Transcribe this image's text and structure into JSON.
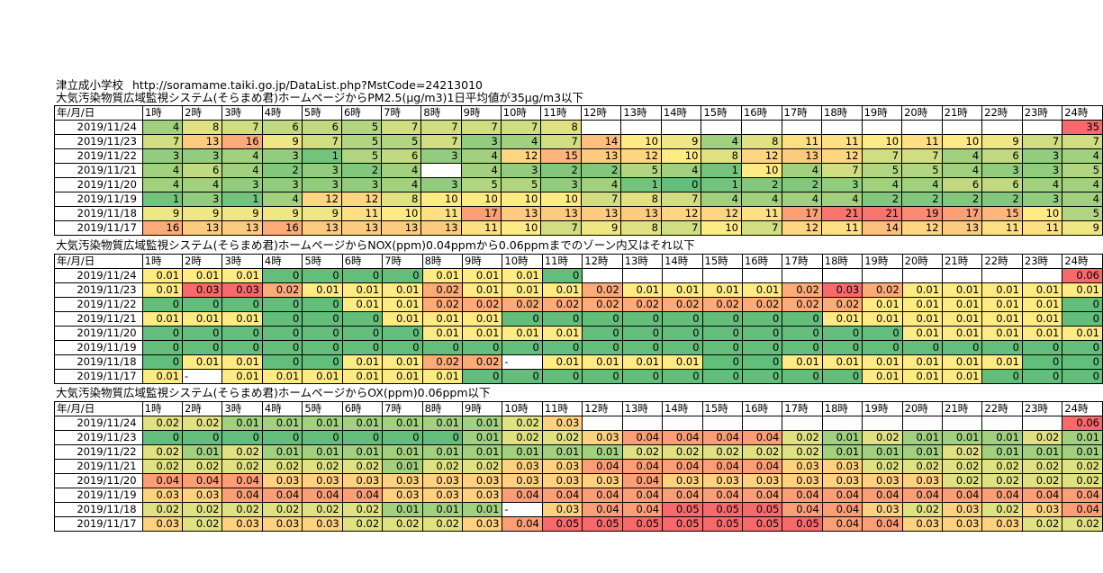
{
  "site": {
    "name": "津立成小学校",
    "url": "http://soramame.taiki.go.jp/DataList.php?MstCode=24213010"
  },
  "header_row": {
    "corner": "年/月/日",
    "hours": [
      "1時",
      "2時",
      "3時",
      "4時",
      "5時",
      "6時",
      "7時",
      "8時",
      "9時",
      "10時",
      "11時",
      "12時",
      "13時",
      "14時",
      "15時",
      "16時",
      "17時",
      "18時",
      "19時",
      "20時",
      "21時",
      "22時",
      "23時",
      "24時"
    ]
  },
  "sections": [
    {
      "id": "pm25",
      "caption": "大気汚染物質広域監視システム(そらまめ君)ホームページからPM2.5(μg/m3)1日平均値が35μg/m3以下",
      "scale": {
        "lo": 0,
        "mid": 10,
        "hi": 22
      },
      "rows": [
        {
          "date": "2019/11/24",
          "values": [
            "4",
            "8",
            "7",
            "6",
            "6",
            "5",
            "7",
            "7",
            "7",
            "7",
            "8",
            "",
            "",
            "",
            "",
            "",
            "",
            "",
            "",
            "",
            "",
            "",
            "",
            "35"
          ]
        },
        {
          "date": "2019/11/23",
          "values": [
            "7",
            "13",
            "16",
            "9",
            "7",
            "5",
            "5",
            "7",
            "3",
            "4",
            "7",
            "14",
            "10",
            "9",
            "4",
            "8",
            "11",
            "11",
            "10",
            "11",
            "10",
            "9",
            "7",
            "7"
          ]
        },
        {
          "date": "2019/11/22",
          "values": [
            "3",
            "3",
            "4",
            "3",
            "1",
            "5",
            "6",
            "3",
            "4",
            "12",
            "15",
            "13",
            "12",
            "10",
            "8",
            "12",
            "13",
            "12",
            "7",
            "7",
            "4",
            "6",
            "3",
            "4"
          ]
        },
        {
          "date": "2019/11/21",
          "values": [
            "4",
            "6",
            "4",
            "2",
            "3",
            "2",
            "4",
            "",
            "4",
            "3",
            "2",
            "2",
            "5",
            "4",
            "1",
            "10",
            "4",
            "7",
            "5",
            "5",
            "4",
            "3",
            "3",
            "5"
          ]
        },
        {
          "date": "2019/11/20",
          "values": [
            "4",
            "4",
            "3",
            "3",
            "3",
            "3",
            "4",
            "3",
            "5",
            "5",
            "3",
            "4",
            "1",
            "0",
            "1",
            "2",
            "2",
            "3",
            "4",
            "4",
            "6",
            "6",
            "4",
            "4"
          ]
        },
        {
          "date": "2019/11/19",
          "values": [
            "1",
            "3",
            "1",
            "4",
            "12",
            "12",
            "8",
            "10",
            "10",
            "10",
            "10",
            "7",
            "8",
            "7",
            "4",
            "4",
            "4",
            "4",
            "2",
            "2",
            "2",
            "2",
            "3",
            "4"
          ]
        },
        {
          "date": "2019/11/18",
          "values": [
            "9",
            "9",
            "9",
            "9",
            "9",
            "11",
            "10",
            "11",
            "17",
            "13",
            "13",
            "13",
            "13",
            "12",
            "12",
            "11",
            "17",
            "21",
            "21",
            "19",
            "17",
            "15",
            "10",
            "5"
          ]
        },
        {
          "date": "2019/11/17",
          "values": [
            "16",
            "13",
            "13",
            "16",
            "13",
            "13",
            "13",
            "13",
            "11",
            "10",
            "7",
            "9",
            "8",
            "7",
            "10",
            "7",
            "12",
            "11",
            "14",
            "12",
            "13",
            "11",
            "11",
            "9"
          ]
        }
      ]
    },
    {
      "id": "nox",
      "caption": "大気汚染物質広域監視システム(そらまめ君)ホームページからNOX(ppm)0.04ppmから0.06ppmまでのゾーン内又はそれ以下",
      "scale": {
        "lo": 0,
        "mid": 0.01,
        "hi": 0.03
      },
      "rows": [
        {
          "date": "2019/11/24",
          "values": [
            "0.01",
            "0.01",
            "0.01",
            "0",
            "0",
            "0",
            "0",
            "0.01",
            "0.01",
            "0.01",
            "0",
            "",
            "",
            "",
            "",
            "",
            "",
            "",
            "",
            "",
            "",
            "",
            "",
            "0.06"
          ]
        },
        {
          "date": "2019/11/23",
          "values": [
            "0.01",
            "0.03",
            "0.03",
            "0.02",
            "0.01",
            "0.01",
            "0.01",
            "0.02",
            "0.01",
            "0.01",
            "0.01",
            "0.02",
            "0.01",
            "0.01",
            "0.01",
            "0.01",
            "0.02",
            "0.03",
            "0.02",
            "0.01",
            "0.01",
            "0.01",
            "0.01",
            "0.01"
          ]
        },
        {
          "date": "2019/11/22",
          "values": [
            "0",
            "0",
            "0",
            "0",
            "0",
            "0.01",
            "0.01",
            "0.02",
            "0.02",
            "0.02",
            "0.02",
            "0.02",
            "0.02",
            "0.02",
            "0.02",
            "0.02",
            "0.02",
            "0.02",
            "0.01",
            "0.01",
            "0.01",
            "0.01",
            "0.01",
            "0"
          ]
        },
        {
          "date": "2019/11/21",
          "values": [
            "0.01",
            "0.01",
            "0.01",
            "0",
            "0",
            "0",
            "0.01",
            "0.01",
            "0.01",
            "0",
            "0",
            "0",
            "0",
            "0",
            "0",
            "0",
            "0",
            "0.01",
            "0.01",
            "0.01",
            "0.01",
            "0.01",
            "0.01",
            "0"
          ]
        },
        {
          "date": "2019/11/20",
          "values": [
            "0",
            "0",
            "0",
            "0",
            "0",
            "0",
            "0",
            "0.01",
            "0.01",
            "0.01",
            "0.01",
            "0",
            "0",
            "0",
            "0",
            "0",
            "0",
            "0",
            "0",
            "0.01",
            "0.01",
            "0.01",
            "0.01",
            "0.01"
          ]
        },
        {
          "date": "2019/11/19",
          "values": [
            "0",
            "0",
            "0",
            "0",
            "0",
            "0",
            "0",
            "0",
            "0",
            "0",
            "0",
            "0",
            "0",
            "0",
            "0",
            "0",
            "0",
            "0",
            "0",
            "0",
            "0",
            "0",
            "0",
            "0"
          ]
        },
        {
          "date": "2019/11/18",
          "values": [
            "0",
            "0.01",
            "0.01",
            "0",
            "0",
            "0.01",
            "0.01",
            "0.02",
            "0.02",
            "-",
            "0.01",
            "0.01",
            "0.01",
            "0.01",
            "0",
            "0",
            "0.01",
            "0.01",
            "0.01",
            "0.01",
            "0.01",
            "0.01",
            "0",
            "0"
          ]
        },
        {
          "date": "2019/11/17",
          "values": [
            "0.01",
            "-",
            "0.01",
            "0.01",
            "0.01",
            "0.01",
            "0.01",
            "0.01",
            "0",
            "0",
            "0",
            "0",
            "0",
            "0",
            "0",
            "0",
            "0",
            "0",
            "0.01",
            "0.01",
            "0.01",
            "0",
            "0",
            "0"
          ]
        }
      ]
    },
    {
      "id": "ox",
      "caption": "大気汚染物質広域監視システム(そらまめ君)ホームページからOX(ppm)0.06ppm以下",
      "scale": {
        "lo": 0,
        "mid": 0.025,
        "hi": 0.05
      },
      "rows": [
        {
          "date": "2019/11/24",
          "values": [
            "0.02",
            "0.02",
            "0.01",
            "0.01",
            "0.01",
            "0.01",
            "0.01",
            "0.01",
            "0.01",
            "0.02",
            "0.03",
            "",
            "",
            "",
            "",
            "",
            "",
            "",
            "",
            "",
            "",
            "",
            "",
            "0.06"
          ]
        },
        {
          "date": "2019/11/23",
          "values": [
            "0",
            "0",
            "0",
            "0",
            "0",
            "0",
            "0",
            "0",
            "0.01",
            "0.02",
            "0.02",
            "0.03",
            "0.04",
            "0.04",
            "0.04",
            "0.04",
            "0.02",
            "0.01",
            "0.02",
            "0.01",
            "0.01",
            "0.01",
            "0.02",
            "0.01"
          ]
        },
        {
          "date": "2019/11/22",
          "values": [
            "0.02",
            "0.01",
            "0.02",
            "0.01",
            "0.01",
            "0.01",
            "0.01",
            "0.01",
            "0.01",
            "0.01",
            "0.01",
            "0.01",
            "0.02",
            "0.02",
            "0.02",
            "0.02",
            "0.02",
            "0.01",
            "0.01",
            "0.01",
            "0.02",
            "0.01",
            "0.01",
            "0.01"
          ]
        },
        {
          "date": "2019/11/21",
          "values": [
            "0.02",
            "0.02",
            "0.02",
            "0.02",
            "0.02",
            "0.02",
            "0.01",
            "0.02",
            "0.02",
            "0.03",
            "0.03",
            "0.04",
            "0.04",
            "0.04",
            "0.04",
            "0.04",
            "0.03",
            "0.03",
            "0.02",
            "0.02",
            "0.02",
            "0.02",
            "0.02",
            "0.02"
          ]
        },
        {
          "date": "2019/11/20",
          "values": [
            "0.04",
            "0.04",
            "0.04",
            "0.03",
            "0.03",
            "0.03",
            "0.03",
            "0.03",
            "0.03",
            "0.03",
            "0.03",
            "0.03",
            "0.04",
            "0.03",
            "0.03",
            "0.03",
            "0.03",
            "0.03",
            "0.03",
            "0.03",
            "0.02",
            "0.02",
            "0.02",
            "0.02"
          ]
        },
        {
          "date": "2019/11/19",
          "values": [
            "0.03",
            "0.03",
            "0.04",
            "0.04",
            "0.04",
            "0.04",
            "0.03",
            "0.03",
            "0.03",
            "0.04",
            "0.04",
            "0.04",
            "0.04",
            "0.04",
            "0.04",
            "0.04",
            "0.04",
            "0.04",
            "0.04",
            "0.04",
            "0.04",
            "0.04",
            "0.04",
            "0.04"
          ]
        },
        {
          "date": "2019/11/18",
          "values": [
            "0.02",
            "0.02",
            "0.02",
            "0.02",
            "0.02",
            "0.02",
            "0.01",
            "0.01",
            "0.01",
            "-",
            "0.03",
            "0.04",
            "0.04",
            "0.05",
            "0.05",
            "0.05",
            "0.04",
            "0.04",
            "0.03",
            "0.02",
            "0.03",
            "0.02",
            "0.03",
            "0.04"
          ]
        },
        {
          "date": "2019/11/17",
          "values": [
            "0.03",
            "0.02",
            "0.03",
            "0.03",
            "0.03",
            "0.02",
            "0.02",
            "0.02",
            "0.03",
            "0.04",
            "0.05",
            "0.05",
            "0.05",
            "0.05",
            "0.05",
            "0.05",
            "0.05",
            "0.04",
            "0.04",
            "0.03",
            "0.03",
            "0.03",
            "0.02",
            "0.02"
          ]
        }
      ]
    }
  ]
}
